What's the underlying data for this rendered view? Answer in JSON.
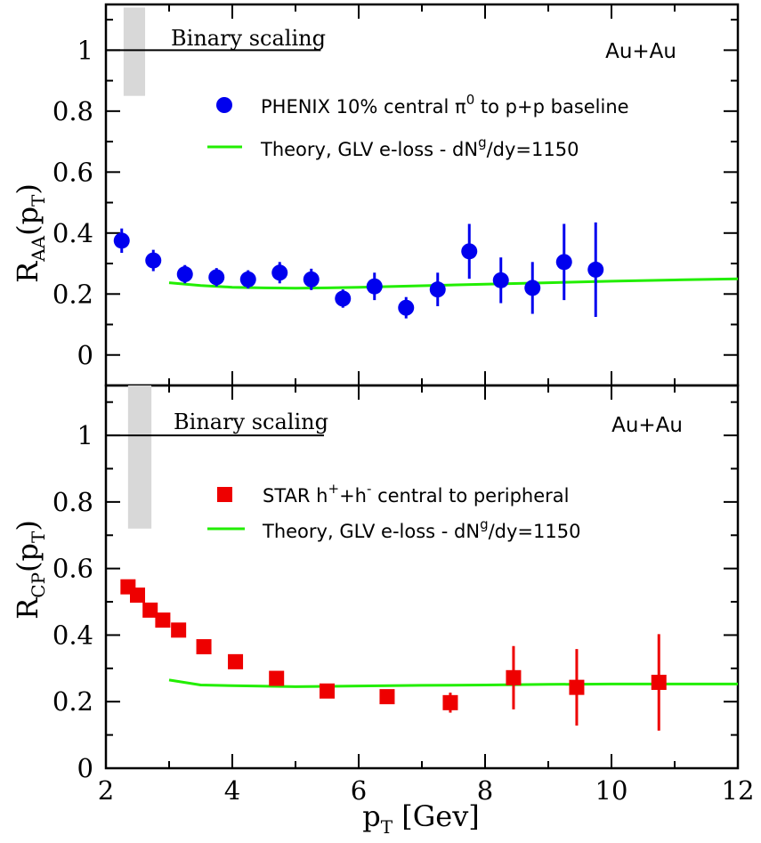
{
  "chart_data": [
    {
      "type": "scatter",
      "panel": "top",
      "ylabel_main": "R",
      "ylabel_sub": "AA",
      "ylabel_arg": "(p",
      "ylabel_arg_sub": "T",
      "ylabel_close": ")",
      "xlim": [
        2,
        12
      ],
      "ylim": [
        -0.1,
        1.15
      ],
      "yticks": [
        "0",
        "0.2",
        "0.4",
        "0.6",
        "0.8",
        "1"
      ],
      "ytick_values": [
        0,
        0.2,
        0.4,
        0.6,
        0.8,
        1.0
      ],
      "system": "Au+Au",
      "binary_label": "Binary scaling",
      "binary_line": {
        "x": [
          2,
          5.4
        ],
        "y": 1.0
      },
      "binary_band": {
        "x": [
          2.28,
          2.62
        ],
        "y": [
          0.85,
          1.14
        ]
      },
      "data_legend": "PHENIX 10% central π",
      "data_legend_sup": "0",
      "data_legend_tail": " to p+p baseline",
      "theory_legend": "Theory, GLV e-loss - dN",
      "theory_legend_sup": "g",
      "theory_legend_tail": "/dy=1150",
      "data_color": "#0000ee",
      "theory_color": "#22ee00",
      "data": {
        "x": [
          2.25,
          2.75,
          3.25,
          3.75,
          4.25,
          4.75,
          5.25,
          5.75,
          6.25,
          6.75,
          7.25,
          7.75,
          8.25,
          8.75,
          9.25,
          9.75
        ],
        "y": [
          0.375,
          0.31,
          0.265,
          0.255,
          0.248,
          0.27,
          0.248,
          0.185,
          0.225,
          0.155,
          0.215,
          0.34,
          0.245,
          0.22,
          0.305,
          0.28
        ],
        "err": [
          0.04,
          0.035,
          0.03,
          0.03,
          0.03,
          0.035,
          0.035,
          0.03,
          0.045,
          0.035,
          0.055,
          0.09,
          0.075,
          0.085,
          0.125,
          0.155
        ]
      },
      "theory": {
        "x": [
          3.0,
          3.5,
          4.0,
          4.5,
          5.0,
          5.5,
          6.0,
          7.0,
          8.0,
          9.0,
          10.0,
          11.0,
          12.0
        ],
        "y": [
          0.237,
          0.228,
          0.222,
          0.22,
          0.219,
          0.22,
          0.222,
          0.227,
          0.232,
          0.237,
          0.242,
          0.246,
          0.25
        ]
      }
    },
    {
      "type": "scatter",
      "panel": "bottom",
      "ylabel_main": "R",
      "ylabel_sub": "CP",
      "ylabel_arg": "(p",
      "ylabel_arg_sub": "T",
      "ylabel_close": ")",
      "xlabel_main": "p",
      "xlabel_sub": "T",
      "xlabel_tail": " [Gev]",
      "xlim": [
        2,
        12
      ],
      "ylim": [
        0,
        1.15
      ],
      "xticks": [
        "2",
        "4",
        "6",
        "8",
        "10",
        "12"
      ],
      "xtick_values": [
        2,
        4,
        6,
        8,
        10,
        12
      ],
      "yticks": [
        "0",
        "0.2",
        "0.4",
        "0.6",
        "0.8",
        "1"
      ],
      "ytick_values": [
        0,
        0.2,
        0.4,
        0.6,
        0.8,
        1.0
      ],
      "system": "Au+Au",
      "binary_label": "Binary scaling",
      "binary_line": {
        "x": [
          2,
          5.45
        ],
        "y": 1.0
      },
      "binary_band": {
        "x": [
          2.35,
          2.72
        ],
        "y": [
          0.72,
          1.15
        ]
      },
      "data_legend": "STAR h",
      "data_legend_sup": "+",
      "data_legend_mid": "+h",
      "data_legend_sup2": "-",
      "data_legend_tail": " central to peripheral",
      "theory_legend": "Theory, GLV e-loss - dN",
      "theory_legend_sup": "g",
      "theory_legend_tail": "/dy=1150",
      "data_color": "#ee0000",
      "theory_color": "#22ee00",
      "data": {
        "x": [
          2.35,
          2.5,
          2.7,
          2.9,
          3.15,
          3.55,
          4.05,
          4.7,
          5.5,
          6.45,
          7.45,
          8.45,
          9.45,
          10.75
        ],
        "y": [
          0.545,
          0.52,
          0.475,
          0.445,
          0.415,
          0.365,
          0.32,
          0.27,
          0.232,
          0.215,
          0.197,
          0.272,
          0.243,
          0.258
        ],
        "err": [
          0.02,
          0.02,
          0.015,
          0.015,
          0.015,
          0.015,
          0.015,
          0.015,
          0.015,
          0.02,
          0.03,
          0.095,
          0.115,
          0.145
        ]
      },
      "theory": {
        "x": [
          3.0,
          3.5,
          4.0,
          5.0,
          6.0,
          7.0,
          8.0,
          9.0,
          10.0,
          11.0,
          12.0
        ],
        "y": [
          0.265,
          0.25,
          0.248,
          0.245,
          0.247,
          0.249,
          0.25,
          0.252,
          0.253,
          0.253,
          0.253
        ]
      }
    }
  ]
}
